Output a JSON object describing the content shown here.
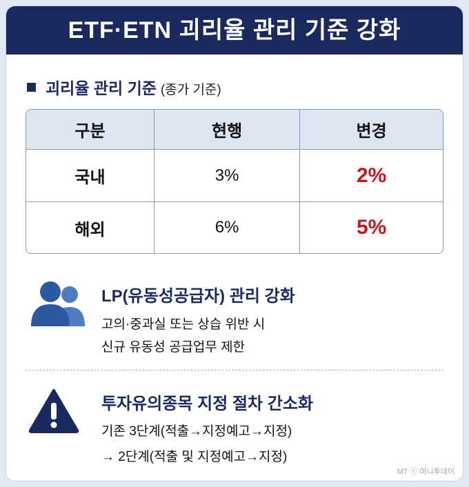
{
  "header": {
    "title": "ETF·ETN 괴리율 관리 기준 강화"
  },
  "section": {
    "title": "괴리율 관리 기준",
    "note": "(종가 기준)"
  },
  "table": {
    "header": [
      "구분",
      "현행",
      "변경"
    ],
    "rows": [
      [
        "국내",
        "3%",
        "2%"
      ],
      [
        "해외",
        "6%",
        "5%"
      ]
    ]
  },
  "items": [
    {
      "title": "LP(유동성공급자) 관리 강화",
      "lines": [
        "고의·중과실 또는 상습 위반 시",
        "신규 유동성 공급업무 제한"
      ]
    },
    {
      "title": "투자유의종목 지정 절차 간소화",
      "lines": [
        "기존 3단계(적출→지정예고→지정)",
        "→ 2단계(적출 및 지정예고→지정)"
      ]
    }
  ],
  "footer": {
    "credit": "MT ⓒ 머니투데이"
  }
}
